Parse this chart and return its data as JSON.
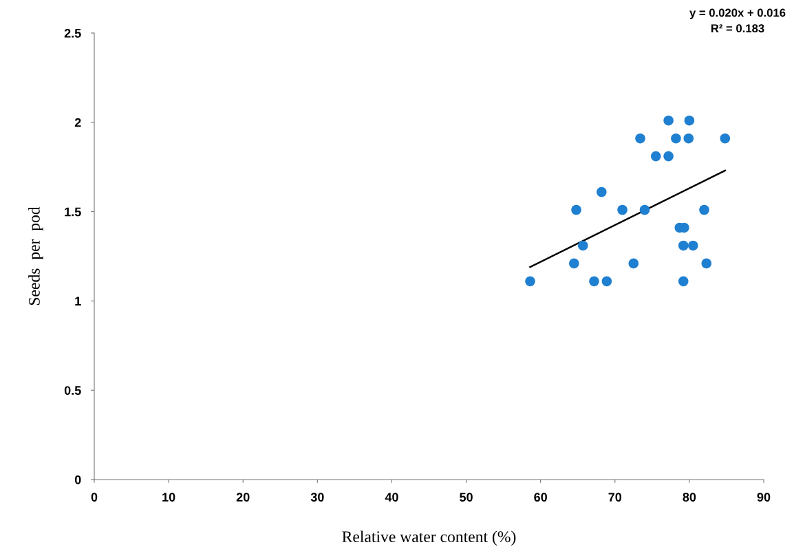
{
  "chart_data": {
    "type": "scatter",
    "xlabel": "Relative water content (%)",
    "ylabel": "Seeds  per  pod",
    "xlim": [
      0,
      90
    ],
    "xticks": [
      0,
      10,
      20,
      30,
      40,
      50,
      60,
      70,
      80,
      90
    ],
    "ylim": [
      0,
      2.5
    ],
    "yticks": [
      0,
      0.5,
      1,
      1.5,
      2,
      2.5
    ],
    "grid": false,
    "legend": false,
    "marker": "circle",
    "annotations": [
      "y = 0.020x + 0.016",
      "R² = 0.183"
    ],
    "series": [
      {
        "color": "#1f7fd0",
        "x": [
          58.6,
          64.5,
          64.8,
          65.7,
          67.2,
          68.2,
          68.9,
          71.0,
          72.5,
          73.4,
          74.0,
          75.5,
          77.2,
          77.2,
          78.2,
          78.7,
          79.3,
          79.2,
          79.2,
          80.0,
          79.9,
          80.5,
          82.0,
          82.3,
          84.8
        ],
        "values": [
          1.11,
          1.21,
          1.51,
          1.31,
          1.11,
          1.61,
          1.11,
          1.51,
          1.21,
          1.91,
          1.51,
          1.81,
          2.01,
          1.81,
          1.91,
          1.41,
          1.41,
          1.31,
          1.11,
          2.01,
          1.91,
          1.31,
          1.51,
          1.21,
          1.91
        ]
      },
      {
        "type": "line",
        "color": "#000000",
        "x": [
          58.6,
          84.8
        ],
        "values": [
          1.19,
          1.73
        ],
        "marker": "none",
        "line_style": "solid"
      }
    ]
  }
}
